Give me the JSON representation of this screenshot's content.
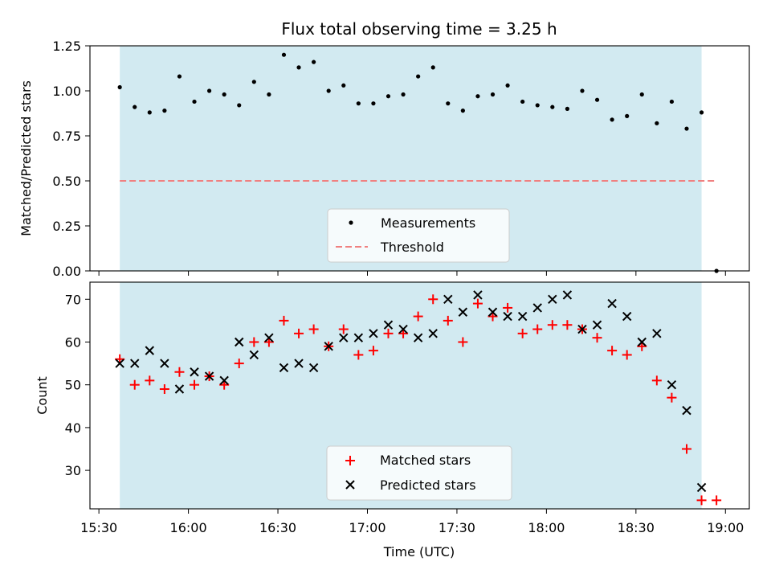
{
  "chart_data": [
    {
      "type": "scatter",
      "title": "Flux total observing time = 3.25 h",
      "ylabel": "Matched/Predicted stars",
      "ylim": [
        0,
        1.25
      ],
      "yticks": [
        "0.00",
        "0.25",
        "0.50",
        "0.75",
        "1.00",
        "1.25"
      ],
      "shaded_x_range": [
        "15:37",
        "18:52"
      ],
      "shade_color": "#add8e6",
      "threshold": 0.5,
      "threshold_color": "#f08080",
      "legend": {
        "placement": "lower-center",
        "entries": [
          "Measurements",
          "Threshold"
        ]
      },
      "series": [
        {
          "name": "Measurements",
          "color": "#000000",
          "x": [
            "15:37",
            "15:42",
            "15:47",
            "15:52",
            "15:57",
            "16:02",
            "16:07",
            "16:12",
            "16:17",
            "16:22",
            "16:27",
            "16:32",
            "16:37",
            "16:42",
            "16:47",
            "16:52",
            "16:57",
            "17:02",
            "17:07",
            "17:12",
            "17:17",
            "17:22",
            "17:27",
            "17:32",
            "17:37",
            "17:42",
            "17:47",
            "17:52",
            "17:57",
            "18:02",
            "18:07",
            "18:12",
            "18:17",
            "18:22",
            "18:27",
            "18:32",
            "18:37",
            "18:42",
            "18:47",
            "18:52",
            "18:57"
          ],
          "y": [
            1.02,
            0.91,
            0.88,
            0.89,
            1.08,
            0.94,
            1.0,
            0.98,
            0.92,
            1.05,
            0.98,
            1.2,
            1.13,
            1.16,
            1.0,
            1.03,
            0.93,
            0.93,
            0.97,
            0.98,
            1.08,
            1.13,
            0.93,
            0.89,
            0.97,
            0.98,
            1.03,
            0.94,
            0.92,
            0.91,
            0.9,
            1.0,
            0.95,
            0.84,
            0.86,
            0.98,
            0.82,
            0.94,
            0.79,
            0.88,
            0.0
          ]
        }
      ]
    },
    {
      "type": "scatter",
      "xlabel": "Time (UTC)",
      "ylabel": "Count",
      "ylim": [
        21,
        74
      ],
      "yticks": [
        "30",
        "40",
        "50",
        "60",
        "70"
      ],
      "xticks": [
        "15:30",
        "16:00",
        "16:30",
        "17:00",
        "17:30",
        "18:00",
        "18:30",
        "19:00"
      ],
      "legend": {
        "placement": "lower-center",
        "entries": [
          "Matched stars",
          "Predicted stars"
        ]
      },
      "series": [
        {
          "name": "Matched stars",
          "color": "#ff0000",
          "marker": "plus",
          "x": [
            "15:37",
            "15:42",
            "15:47",
            "15:52",
            "15:57",
            "16:02",
            "16:07",
            "16:12",
            "16:17",
            "16:22",
            "16:27",
            "16:32",
            "16:37",
            "16:42",
            "16:47",
            "16:52",
            "16:57",
            "17:02",
            "17:07",
            "17:12",
            "17:17",
            "17:22",
            "17:27",
            "17:32",
            "17:37",
            "17:42",
            "17:47",
            "17:52",
            "17:57",
            "18:02",
            "18:07",
            "18:12",
            "18:17",
            "18:22",
            "18:27",
            "18:32",
            "18:37",
            "18:42",
            "18:47",
            "18:52",
            "18:57"
          ],
          "y": [
            56,
            50,
            51,
            49,
            53,
            50,
            52,
            50,
            55,
            60,
            60,
            65,
            62,
            63,
            59,
            63,
            57,
            58,
            62,
            62,
            66,
            70,
            65,
            60,
            69,
            66,
            68,
            62,
            63,
            64,
            64,
            63,
            61,
            58,
            57,
            59,
            51,
            47,
            35,
            23,
            23
          ]
        },
        {
          "name": "Predicted stars",
          "color": "#000000",
          "marker": "x",
          "x": [
            "15:37",
            "15:42",
            "15:47",
            "15:52",
            "15:57",
            "16:02",
            "16:07",
            "16:12",
            "16:17",
            "16:22",
            "16:27",
            "16:32",
            "16:37",
            "16:42",
            "16:47",
            "16:52",
            "16:57",
            "17:02",
            "17:07",
            "17:12",
            "17:17",
            "17:22",
            "17:27",
            "17:32",
            "17:37",
            "17:42",
            "17:47",
            "17:52",
            "17:57",
            "18:02",
            "18:07",
            "18:12",
            "18:17",
            "18:22",
            "18:27",
            "18:32",
            "18:37",
            "18:42",
            "18:47",
            "18:52"
          ],
          "y": [
            55,
            55,
            58,
            55,
            49,
            53,
            52,
            51,
            60,
            57,
            61,
            54,
            55,
            54,
            59,
            61,
            61,
            62,
            64,
            63,
            61,
            62,
            70,
            67,
            71,
            67,
            66,
            66,
            68,
            70,
            71,
            63,
            64,
            69,
            66,
            60,
            62,
            50,
            44,
            26
          ]
        }
      ]
    }
  ]
}
